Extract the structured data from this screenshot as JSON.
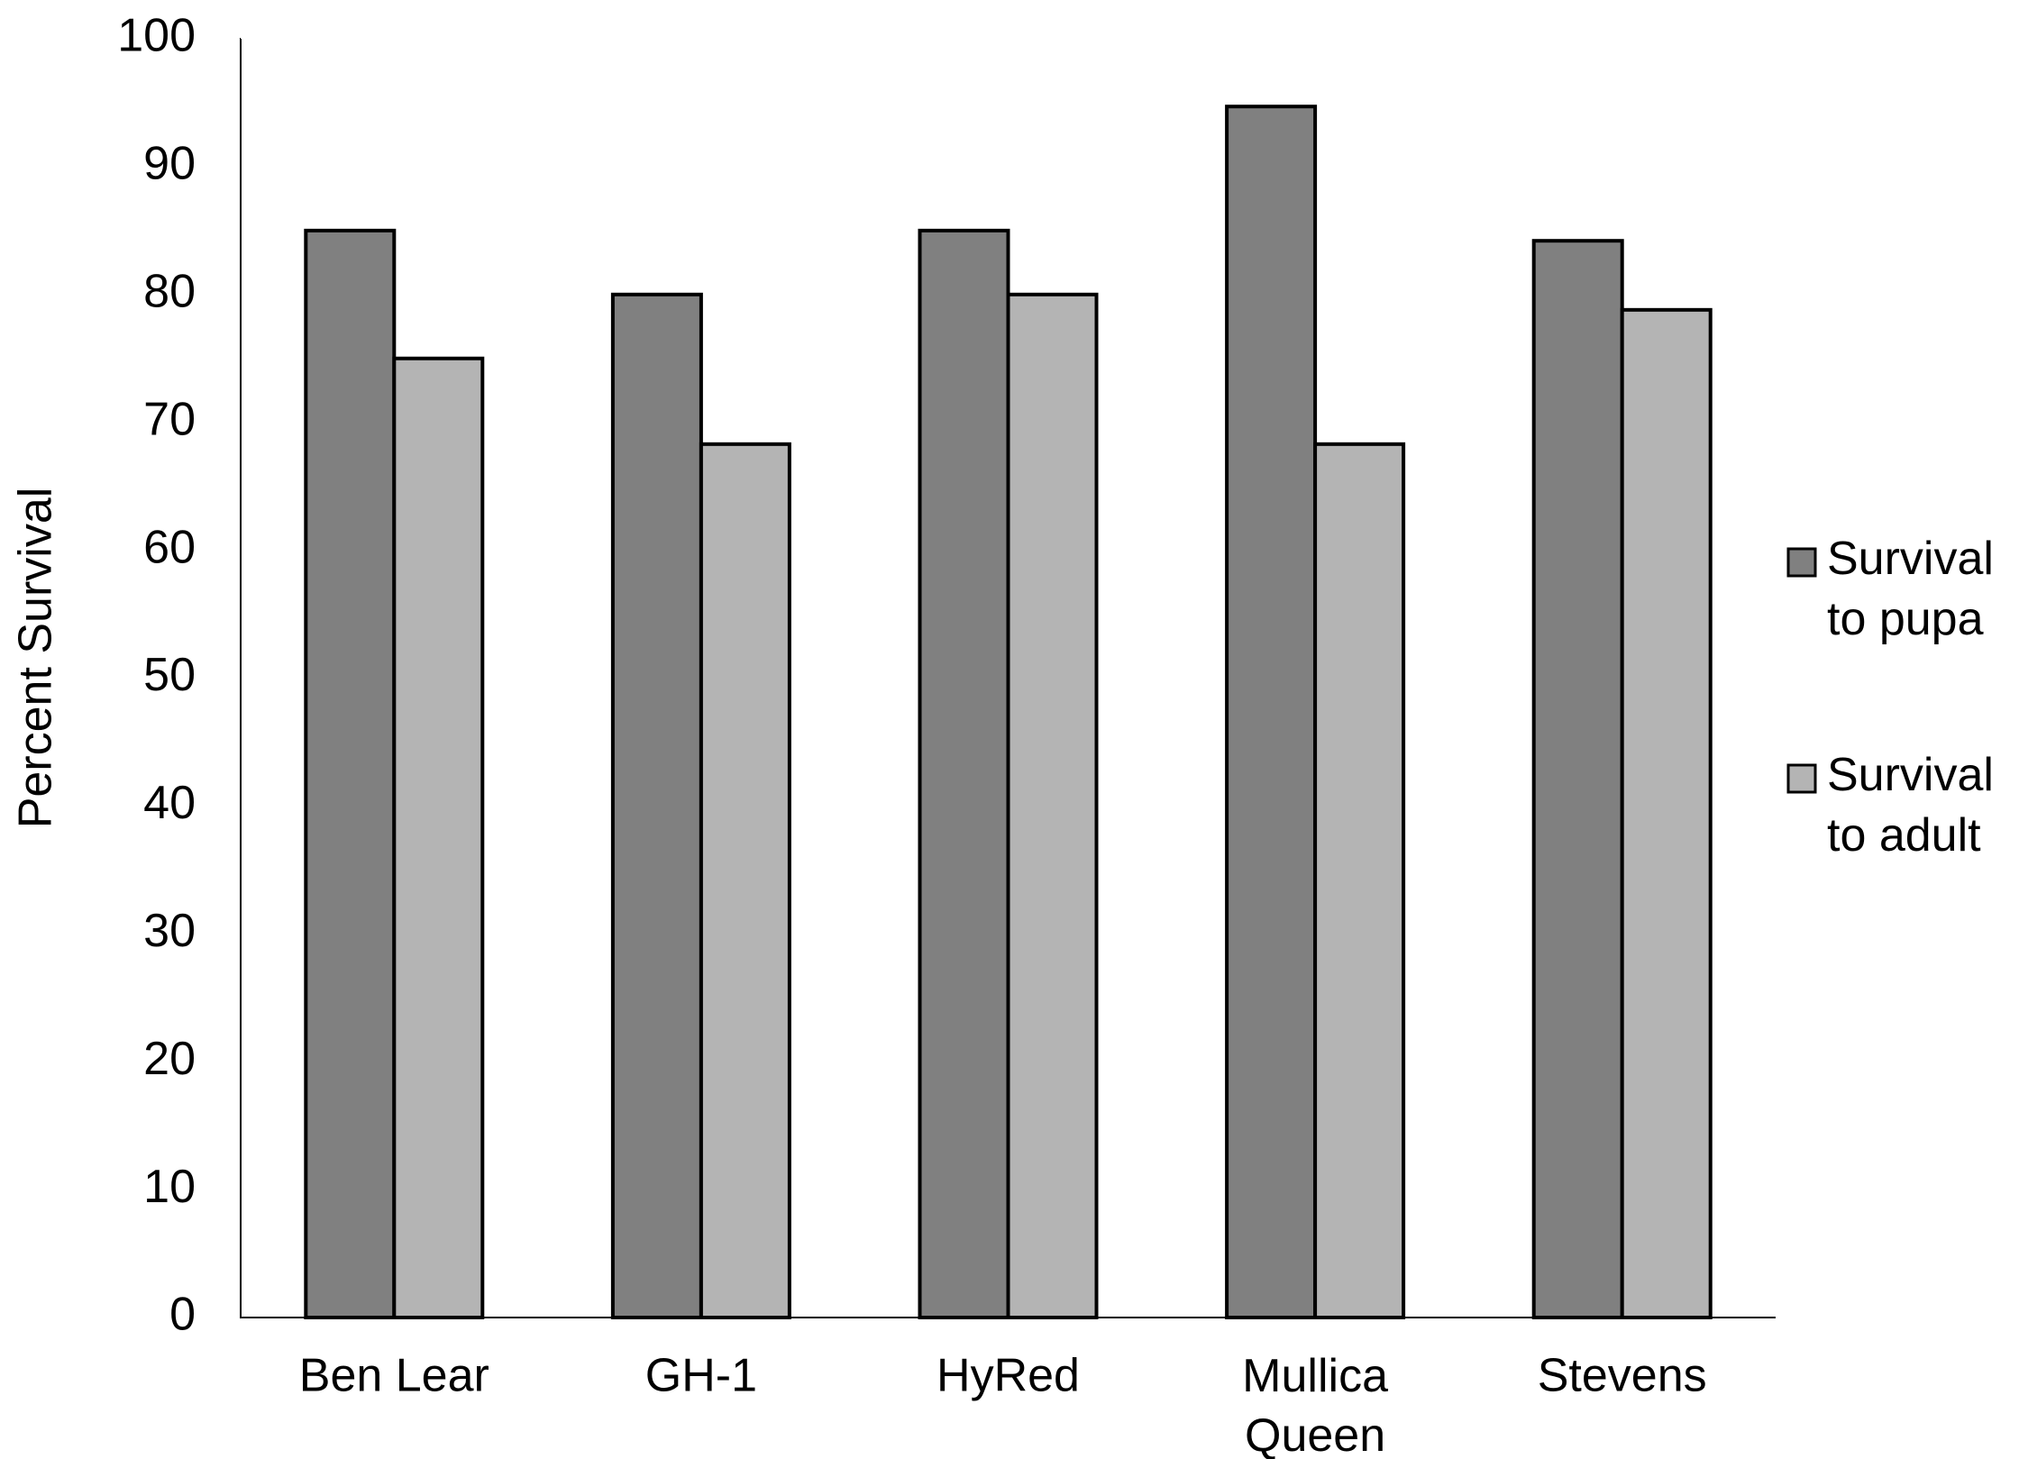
{
  "chart_data": {
    "type": "bar",
    "y_label": "Percent Survival",
    "categories": [
      "Ben Lear",
      "GH-1",
      "HyRed",
      "Mullica Queen",
      "Stevens"
    ],
    "series": [
      {
        "name": "Survival to pupa",
        "color": "#808080",
        "values": [
          85,
          80,
          85,
          94.7,
          84.2
        ]
      },
      {
        "name": "Survival to adult",
        "color": "#b4b4b4",
        "values": [
          75,
          68.3,
          80,
          68.3,
          78.8
        ]
      }
    ],
    "ylim": [
      0,
      100
    ],
    "yticks": [
      0,
      10,
      20,
      30,
      40,
      50,
      60,
      70,
      80,
      90,
      100
    ],
    "grid": false,
    "legend": "right"
  }
}
